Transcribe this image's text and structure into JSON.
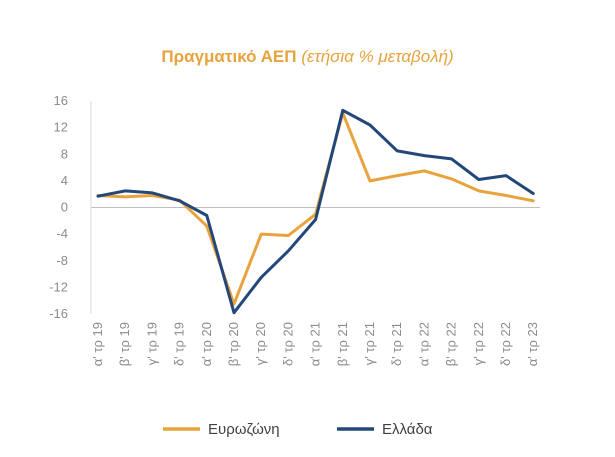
{
  "chart_data": {
    "type": "line",
    "title": "Πραγματικό ΑΕΠ",
    "subtitle": "(ετήσια % μεταβολή)",
    "categories": [
      "α' τρ 19",
      "β' τρ 19",
      "γ' τρ 19",
      "δ' τρ 19",
      "α' τρ 20",
      "β' τρ 20",
      "γ' τρ 20",
      "δ' τρ 20",
      "α' τρ 21",
      "β' τρ 21",
      "γ' τρ 21",
      "δ' τρ 21",
      "α' τρ 22",
      "β' τρ 22",
      "γ' τρ 22",
      "δ' τρ 22",
      "α' τρ 23"
    ],
    "series": [
      {
        "name": "Ευρωζώνη",
        "color": "#e8a33c",
        "values": [
          1.8,
          1.6,
          1.8,
          1.1,
          -2.8,
          -14.5,
          -4.0,
          -4.2,
          -1.0,
          14.2,
          4.0,
          4.8,
          5.5,
          4.3,
          2.5,
          1.8,
          1.0
        ]
      },
      {
        "name": "Ελλάδα",
        "color": "#24477a",
        "values": [
          1.7,
          2.5,
          2.2,
          1.0,
          -1.2,
          -15.8,
          -10.5,
          -6.5,
          -1.8,
          14.6,
          12.4,
          8.5,
          7.8,
          7.3,
          4.2,
          4.8,
          2.1
        ]
      }
    ],
    "yticks": [
      16,
      12,
      8,
      4,
      0,
      -4,
      -8,
      -12,
      -16
    ],
    "ylim": [
      -16,
      16
    ],
    "grid": false,
    "legend": "bottom"
  }
}
